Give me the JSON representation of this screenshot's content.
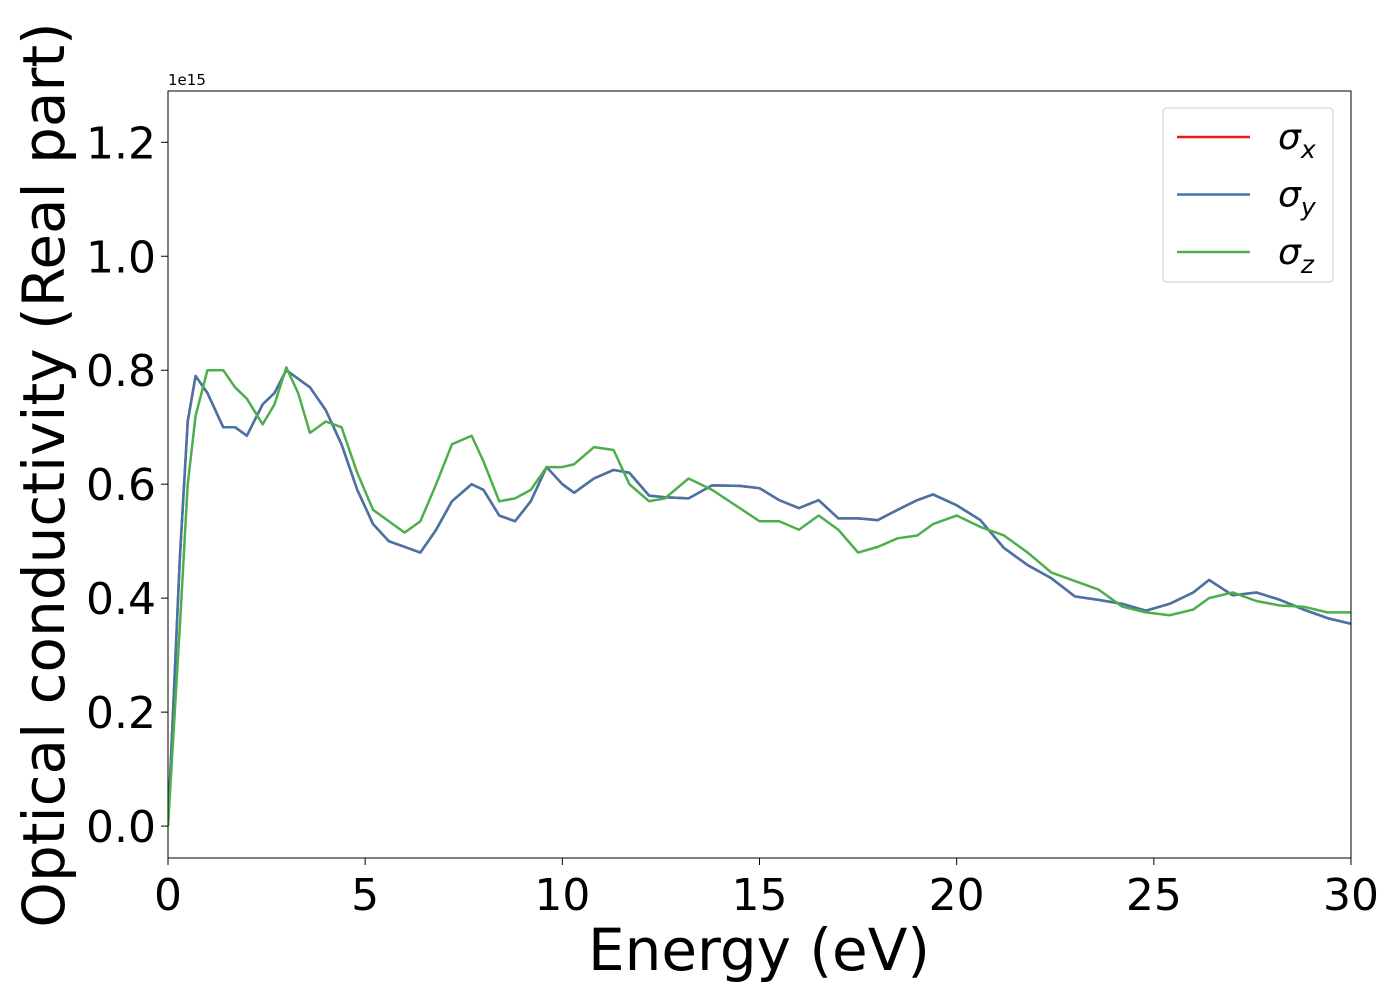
{
  "chart_data": {
    "type": "line",
    "xlabel": "Energy (eV)",
    "ylabel": "Optical conductivity (Real part)",
    "offset_label": "1e15",
    "x": [
      0,
      0.3,
      0.5,
      0.7,
      1.0,
      1.4,
      1.7,
      2.0,
      2.4,
      2.7,
      3.0,
      3.3,
      3.6,
      4.0,
      4.4,
      4.8,
      5.2,
      5.6,
      6.0,
      6.4,
      6.8,
      7.2,
      7.7,
      8.0,
      8.4,
      8.8,
      9.2,
      9.6,
      10.0,
      10.3,
      10.8,
      11.3,
      11.7,
      12.2,
      12.6,
      13.2,
      13.8,
      14.5,
      15.0,
      15.5,
      16.0,
      16.5,
      17.0,
      17.5,
      18.0,
      18.5,
      19.0,
      19.4,
      20.0,
      20.6,
      21.2,
      21.8,
      22.4,
      23.0,
      23.6,
      24.2,
      24.8,
      25.4,
      26.0,
      26.4,
      27.0,
      27.6,
      28.2,
      28.8,
      29.4,
      30.0
    ],
    "series": [
      {
        "name": "σx",
        "color": "#e41a1c",
        "values": [
          0,
          0.47,
          0.71,
          0.79,
          0.76,
          0.7,
          0.7,
          0.685,
          0.74,
          0.76,
          0.8,
          0.785,
          0.77,
          0.73,
          0.67,
          0.59,
          0.53,
          0.5,
          0.49,
          0.48,
          0.52,
          0.57,
          0.6,
          0.59,
          0.545,
          0.535,
          0.57,
          0.63,
          0.6,
          0.585,
          0.61,
          0.625,
          0.62,
          0.58,
          0.577,
          0.575,
          0.598,
          0.597,
          0.593,
          0.572,
          0.558,
          0.572,
          0.54,
          0.54,
          0.537,
          0.555,
          0.572,
          0.582,
          0.563,
          0.537,
          0.488,
          0.458,
          0.435,
          0.403,
          0.397,
          0.39,
          0.378,
          0.39,
          0.41,
          0.432,
          0.405,
          0.41,
          0.397,
          0.38,
          0.365,
          0.355
        ]
      },
      {
        "name": "σy",
        "color": "#4575a8",
        "values": [
          0,
          0.47,
          0.71,
          0.79,
          0.76,
          0.7,
          0.7,
          0.685,
          0.74,
          0.76,
          0.8,
          0.785,
          0.77,
          0.73,
          0.67,
          0.59,
          0.53,
          0.5,
          0.49,
          0.48,
          0.52,
          0.57,
          0.6,
          0.59,
          0.545,
          0.535,
          0.57,
          0.63,
          0.6,
          0.585,
          0.61,
          0.625,
          0.62,
          0.58,
          0.577,
          0.575,
          0.598,
          0.597,
          0.593,
          0.572,
          0.558,
          0.572,
          0.54,
          0.54,
          0.537,
          0.555,
          0.572,
          0.582,
          0.563,
          0.537,
          0.488,
          0.458,
          0.435,
          0.403,
          0.397,
          0.39,
          0.378,
          0.39,
          0.41,
          0.432,
          0.405,
          0.41,
          0.397,
          0.38,
          0.365,
          0.355
        ]
      },
      {
        "name": "σz",
        "color": "#4daf4a",
        "values": [
          0,
          0.35,
          0.6,
          0.72,
          0.8,
          0.8,
          0.77,
          0.75,
          0.705,
          0.74,
          0.805,
          0.76,
          0.69,
          0.71,
          0.7,
          0.62,
          0.555,
          0.535,
          0.515,
          0.535,
          0.6,
          0.67,
          0.685,
          0.64,
          0.57,
          0.575,
          0.59,
          0.63,
          0.63,
          0.635,
          0.665,
          0.66,
          0.6,
          0.57,
          0.575,
          0.61,
          0.59,
          0.558,
          0.535,
          0.535,
          0.52,
          0.545,
          0.52,
          0.48,
          0.49,
          0.505,
          0.51,
          0.53,
          0.545,
          0.525,
          0.51,
          0.48,
          0.445,
          0.43,
          0.415,
          0.385,
          0.375,
          0.37,
          0.38,
          0.4,
          0.41,
          0.395,
          0.387,
          0.385,
          0.375,
          0.375
        ]
      }
    ],
    "xlim": [
      0,
      30
    ],
    "xticks": [
      0,
      5,
      10,
      15,
      20,
      25,
      30
    ],
    "ylim": [
      -0.056,
      1.29
    ],
    "yticks": [
      {
        "value": 0,
        "label": "0.0"
      },
      0.2,
      0.4,
      0.6,
      0.8,
      {
        "value": 1,
        "label": "1.0"
      },
      1.2
    ],
    "legend": "upper right",
    "grid": false
  }
}
